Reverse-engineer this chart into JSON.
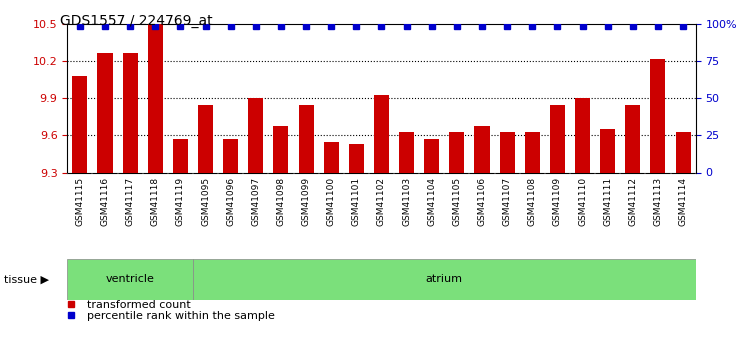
{
  "title": "GDS1557 / 224769_at",
  "categories": [
    "GSM41115",
    "GSM41116",
    "GSM41117",
    "GSM41118",
    "GSM41119",
    "GSM41095",
    "GSM41096",
    "GSM41097",
    "GSM41098",
    "GSM41099",
    "GSM41100",
    "GSM41101",
    "GSM41102",
    "GSM41103",
    "GSM41104",
    "GSM41105",
    "GSM41106",
    "GSM41107",
    "GSM41108",
    "GSM41109",
    "GSM41110",
    "GSM41111",
    "GSM41112",
    "GSM41113",
    "GSM41114"
  ],
  "bar_values": [
    10.08,
    10.27,
    10.27,
    10.5,
    9.57,
    9.85,
    9.57,
    9.9,
    9.68,
    9.85,
    9.55,
    9.53,
    9.93,
    9.63,
    9.57,
    9.63,
    9.68,
    9.63,
    9.63,
    9.85,
    9.9,
    9.65,
    9.85,
    10.22,
    9.63
  ],
  "percentile_values": [
    10.485,
    10.485,
    10.485,
    10.485,
    10.485,
    10.485,
    10.485,
    10.485,
    10.485,
    10.485,
    10.485,
    10.485,
    10.485,
    10.485,
    10.485,
    10.482,
    10.485,
    10.485,
    10.482,
    10.485,
    10.485,
    10.482,
    10.482,
    10.485,
    10.485
  ],
  "ylim_left": [
    9.3,
    10.5
  ],
  "ylim_right": [
    0,
    100
  ],
  "yticks_left": [
    9.3,
    9.6,
    9.9,
    10.2,
    10.5
  ],
  "yticks_right": [
    0,
    25,
    50,
    75,
    100
  ],
  "bar_color": "#cc0000",
  "percentile_color": "#0000cc",
  "background_color": "#ffffff",
  "plot_bg_color": "#ffffff",
  "xticklabel_bg": "#c8c8c8",
  "tissue_color": "#7be07b",
  "tissue_border": "#888888",
  "legend_items": [
    "transformed count",
    "percentile rank within the sample"
  ],
  "bar_width": 0.6,
  "ylabel_left_color": "#cc0000",
  "ylabel_right_color": "#0000cc",
  "title_fontsize": 10,
  "tick_fontsize": 8,
  "xlabel_fontsize": 6.5,
  "tissue_fontsize": 8,
  "legend_fontsize": 8
}
